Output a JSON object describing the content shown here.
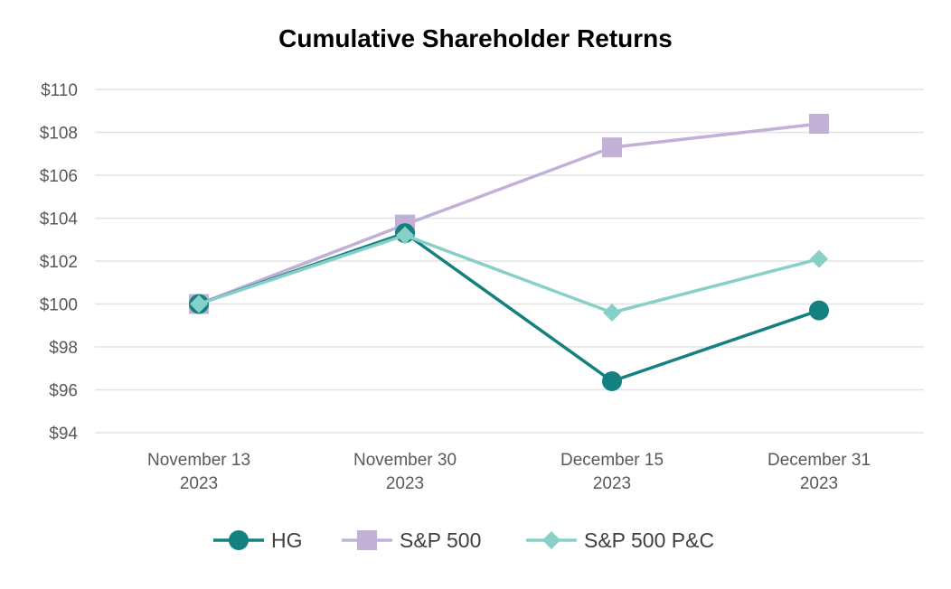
{
  "chart_data": {
    "type": "line",
    "title": "Cumulative Shareholder Returns",
    "xlabel": "",
    "ylabel": "",
    "categories": [
      [
        "November 13",
        "2023"
      ],
      [
        "November 30",
        "2023"
      ],
      [
        "December 15",
        "2023"
      ],
      [
        "December 31",
        "2023"
      ]
    ],
    "ylim": [
      94,
      110
    ],
    "yticks": [
      94,
      96,
      98,
      100,
      102,
      104,
      106,
      108,
      110
    ],
    "ytick_labels": [
      "$94",
      "$96",
      "$98",
      "$100",
      "$102",
      "$104",
      "$106",
      "$108",
      "$110"
    ],
    "grid": true,
    "legend_position": "bottom",
    "series": [
      {
        "name": "HG",
        "values": [
          100.0,
          103.3,
          96.4,
          99.7
        ],
        "color": "#14807f",
        "marker": "circle"
      },
      {
        "name": "S&P 500",
        "values": [
          100.0,
          103.7,
          107.3,
          108.4
        ],
        "color": "#c3b0d6",
        "marker": "square"
      },
      {
        "name": "S&P 500 P&C",
        "values": [
          100.0,
          103.2,
          99.6,
          102.1
        ],
        "color": "#86d0c8",
        "marker": "diamond"
      }
    ]
  }
}
